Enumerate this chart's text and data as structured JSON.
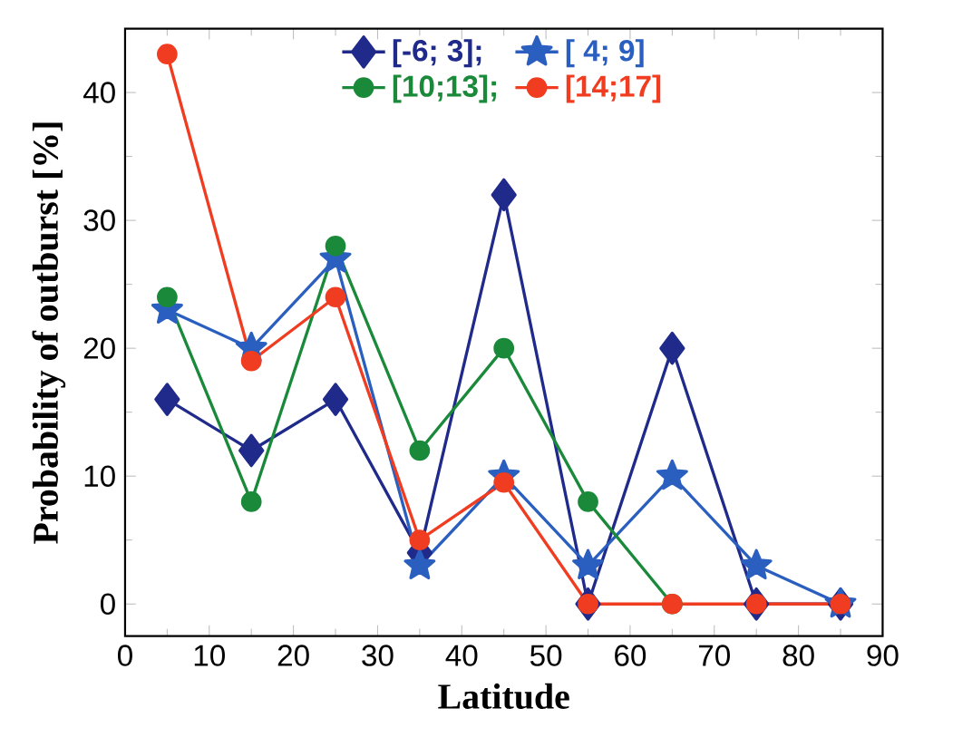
{
  "chart_data": {
    "type": "line",
    "xlabel": "Latitude",
    "ylabel": "Probability of outburst [%]",
    "x": [
      5,
      15,
      25,
      35,
      45,
      55,
      65,
      75,
      85
    ],
    "series": [
      {
        "name": "[-6; 3];",
        "color": "#1f2a8a",
        "marker": "diamond",
        "values": [
          16,
          12,
          16,
          4,
          32,
          0,
          20,
          0,
          0
        ]
      },
      {
        "name": "[ 4; 9]",
        "color": "#2a5fc0",
        "marker": "star",
        "values": [
          23,
          20,
          27,
          3,
          10,
          3,
          10,
          3,
          0
        ]
      },
      {
        "name": "[10;13];",
        "color": "#1a8a3a",
        "marker": "circle",
        "values": [
          24,
          8,
          28,
          12,
          20,
          8,
          0,
          null,
          null
        ]
      },
      {
        "name": "[14;17]",
        "color": "#f03c20",
        "marker": "circle",
        "values": [
          43,
          19,
          24,
          5,
          9.5,
          0,
          0,
          0,
          0
        ]
      }
    ],
    "xlim": [
      0,
      90
    ],
    "ylim": [
      -2.5,
      45
    ],
    "xticks": [
      0,
      10,
      20,
      30,
      40,
      50,
      60,
      70,
      80,
      90
    ],
    "yticks": [
      0,
      10,
      20,
      30,
      40
    ],
    "grid": false,
    "legend": "top",
    "line_style": "solid"
  }
}
